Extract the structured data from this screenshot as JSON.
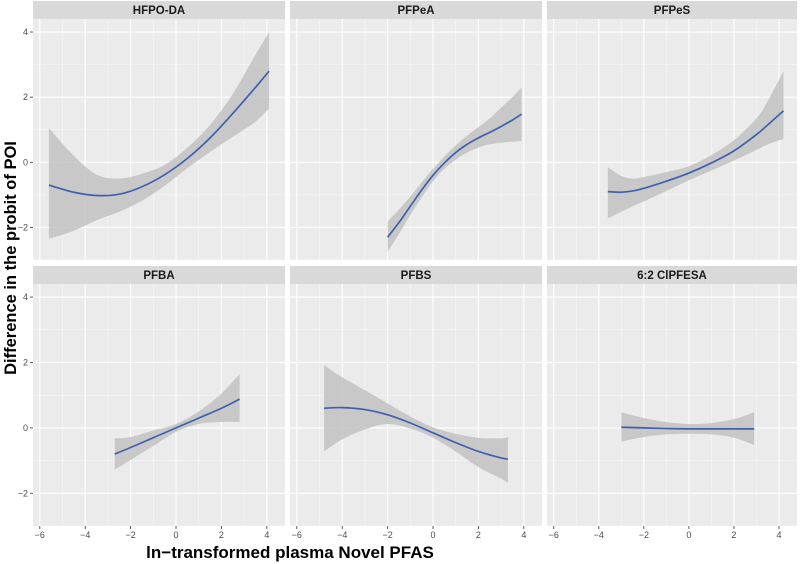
{
  "chart_data": {
    "type": "line",
    "xlabel": "ln−transformed plasma Novel PFAS",
    "ylabel": "Difference in the probit of POI",
    "xlim": [
      -6.3,
      4.8
    ],
    "ylim": [
      -3.0,
      4.4
    ],
    "x_ticks": [
      -6,
      -4,
      -2,
      0,
      2,
      4
    ],
    "x_tick_labels": [
      "−6",
      "−4",
      "−2",
      "0",
      "2",
      "4"
    ],
    "y_ticks": [
      -2,
      0,
      2,
      4
    ],
    "y_tick_labels": [
      "−2",
      "0",
      "2",
      "4"
    ],
    "grid": true,
    "colors": {
      "line": "#3f61ad",
      "band": "#c2c2c2",
      "panel": "#ebebeb",
      "strip": "#d9d9d9",
      "grid": "#ffffff"
    },
    "panels": [
      {
        "label": "HFPO-DA",
        "x": [
          -5.6,
          -4.5,
          -3.5,
          -2.5,
          -1.5,
          -0.5,
          0.5,
          1.5,
          2.5,
          3.5,
          4.1
        ],
        "y": [
          -0.7,
          -0.92,
          -1.02,
          -0.98,
          -0.75,
          -0.38,
          0.12,
          0.75,
          1.5,
          2.3,
          2.8
        ],
        "lower": [
          -2.35,
          -2.1,
          -1.78,
          -1.52,
          -1.18,
          -0.72,
          -0.18,
          0.32,
          0.78,
          1.25,
          1.65
        ],
        "upper": [
          1.05,
          0.2,
          -0.38,
          -0.5,
          -0.35,
          -0.08,
          0.45,
          1.15,
          2.1,
          3.3,
          4.0
        ]
      },
      {
        "label": "PFPeA",
        "x": [
          -2.0,
          -1.5,
          -1.0,
          -0.5,
          0.0,
          0.5,
          1.0,
          1.5,
          2.0,
          2.5,
          3.0,
          3.5,
          3.9
        ],
        "y": [
          -2.3,
          -1.85,
          -1.35,
          -0.85,
          -0.4,
          -0.02,
          0.3,
          0.55,
          0.75,
          0.92,
          1.1,
          1.3,
          1.48
        ],
        "lower": [
          -2.75,
          -2.2,
          -1.62,
          -1.08,
          -0.58,
          -0.2,
          0.08,
          0.3,
          0.45,
          0.55,
          0.6,
          0.63,
          0.65
        ],
        "upper": [
          -1.82,
          -1.45,
          -1.05,
          -0.62,
          -0.2,
          0.18,
          0.52,
          0.82,
          1.08,
          1.35,
          1.68,
          2.0,
          2.3
        ]
      },
      {
        "label": "PFPeS",
        "x": [
          -3.6,
          -3.0,
          -2.5,
          -2.0,
          -1.0,
          0.0,
          1.0,
          2.0,
          3.0,
          3.5,
          4.2
        ],
        "y": [
          -0.9,
          -0.92,
          -0.88,
          -0.8,
          -0.58,
          -0.33,
          -0.02,
          0.35,
          0.85,
          1.15,
          1.58
        ],
        "lower": [
          -1.72,
          -1.52,
          -1.35,
          -1.2,
          -0.88,
          -0.55,
          -0.25,
          0.05,
          0.38,
          0.55,
          0.72
        ],
        "upper": [
          -0.15,
          -0.42,
          -0.5,
          -0.45,
          -0.3,
          -0.12,
          0.22,
          0.68,
          1.35,
          1.88,
          2.8
        ]
      },
      {
        "label": "PFBA",
        "x": [
          -2.7,
          -2.0,
          -1.0,
          0.0,
          1.0,
          2.0,
          2.8
        ],
        "y": [
          -0.8,
          -0.6,
          -0.3,
          0.0,
          0.3,
          0.6,
          0.88
        ],
        "lower": [
          -1.28,
          -0.98,
          -0.55,
          -0.12,
          0.12,
          0.18,
          0.18
        ],
        "upper": [
          -0.32,
          -0.28,
          -0.08,
          0.12,
          0.5,
          1.05,
          1.65
        ]
      },
      {
        "label": "PFBS",
        "x": [
          -4.8,
          -4.0,
          -3.0,
          -2.0,
          -1.0,
          0.0,
          1.0,
          2.0,
          3.0,
          3.3
        ],
        "y": [
          0.6,
          0.62,
          0.56,
          0.4,
          0.15,
          -0.15,
          -0.45,
          -0.72,
          -0.92,
          -0.95
        ],
        "lower": [
          -0.72,
          -0.35,
          -0.05,
          0.12,
          -0.02,
          -0.3,
          -0.72,
          -1.2,
          -1.55,
          -1.68
        ],
        "upper": [
          1.92,
          1.55,
          1.15,
          0.75,
          0.35,
          0.02,
          -0.18,
          -0.3,
          -0.32,
          -0.28
        ]
      },
      {
        "label": "6:2 ClPFESA",
        "x": [
          -3.0,
          -2.0,
          -1.0,
          0.0,
          1.0,
          2.0,
          2.9
        ],
        "y": [
          0.02,
          0.0,
          -0.02,
          -0.03,
          -0.03,
          -0.03,
          -0.03
        ],
        "lower": [
          -0.42,
          -0.28,
          -0.2,
          -0.18,
          -0.2,
          -0.3,
          -0.52
        ],
        "upper": [
          0.48,
          0.3,
          0.18,
          0.12,
          0.15,
          0.27,
          0.48
        ]
      }
    ]
  }
}
